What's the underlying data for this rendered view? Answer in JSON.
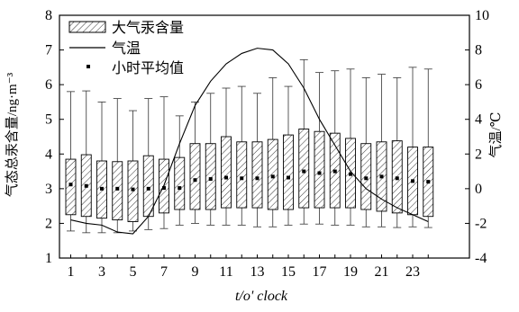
{
  "chart_data": {
    "type": "box",
    "xlabel": "t/o' clock",
    "ylabel_left": "气态总汞含量/ng·m⁻³",
    "ylabel_right": "气温/℃",
    "x": [
      1,
      2,
      3,
      4,
      5,
      6,
      7,
      8,
      9,
      10,
      11,
      12,
      13,
      14,
      15,
      16,
      17,
      18,
      19,
      20,
      21,
      22,
      23,
      24
    ],
    "x_tick_labels": [
      "1",
      "3",
      "5",
      "7",
      "9",
      "11",
      "13",
      "15",
      "17",
      "19",
      "21",
      "23"
    ],
    "ylim_left": [
      1,
      8
    ],
    "yticks_left": [
      "1",
      "2",
      "3",
      "4",
      "5",
      "6",
      "7",
      "8"
    ],
    "ylim_right": [
      -4,
      10
    ],
    "yticks_right": [
      "-4",
      "-2",
      "0",
      "2",
      "4",
      "6",
      "8",
      "10"
    ],
    "legend": [
      "大气汞含量",
      "气温",
      "小时平均值"
    ],
    "legend_position": "top-left",
    "series": [
      {
        "name": "大气汞含量",
        "type": "box",
        "whisker_low": [
          1.78,
          1.73,
          1.73,
          1.73,
          1.78,
          1.82,
          1.85,
          1.95,
          2.0,
          1.95,
          1.95,
          1.95,
          1.9,
          1.9,
          1.95,
          1.98,
          1.98,
          1.95,
          1.95,
          1.9,
          1.9,
          1.88,
          1.9,
          1.88
        ],
        "q1": [
          2.25,
          2.2,
          2.15,
          2.1,
          2.05,
          2.2,
          2.3,
          2.4,
          2.4,
          2.4,
          2.45,
          2.45,
          2.45,
          2.4,
          2.4,
          2.45,
          2.45,
          2.45,
          2.45,
          2.4,
          2.35,
          2.3,
          2.25,
          2.2
        ],
        "q3": [
          3.85,
          3.98,
          3.8,
          3.78,
          3.8,
          3.95,
          3.85,
          3.9,
          4.3,
          4.3,
          4.5,
          4.35,
          4.35,
          4.42,
          4.55,
          4.72,
          4.65,
          4.6,
          4.45,
          4.3,
          4.35,
          4.38,
          4.2,
          4.2
        ],
        "whisker_high": [
          5.8,
          5.82,
          5.5,
          5.6,
          5.25,
          5.6,
          5.65,
          5.1,
          5.5,
          5.75,
          5.9,
          5.95,
          5.75,
          6.2,
          5.95,
          6.72,
          6.35,
          6.4,
          6.45,
          6.2,
          6.3,
          6.2,
          6.5,
          6.45
        ],
        "mean": [
          3.12,
          3.08,
          3.0,
          3.0,
          2.98,
          3.0,
          3.02,
          3.02,
          3.25,
          3.28,
          3.32,
          3.3,
          3.3,
          3.35,
          3.32,
          3.5,
          3.45,
          3.5,
          3.42,
          3.3,
          3.35,
          3.3,
          3.22,
          3.2
        ]
      },
      {
        "name": "气温",
        "type": "line",
        "axis": "right",
        "values": [
          -1.8,
          -2.0,
          -2.1,
          -2.5,
          -2.6,
          -1.6,
          0.2,
          2.6,
          4.8,
          6.2,
          7.2,
          7.8,
          8.1,
          8.0,
          7.2,
          5.8,
          4.0,
          2.5,
          1.0,
          0.0,
          -0.6,
          -1.1,
          -1.5,
          -1.9
        ]
      },
      {
        "name": "小时平均值",
        "type": "point"
      }
    ]
  }
}
